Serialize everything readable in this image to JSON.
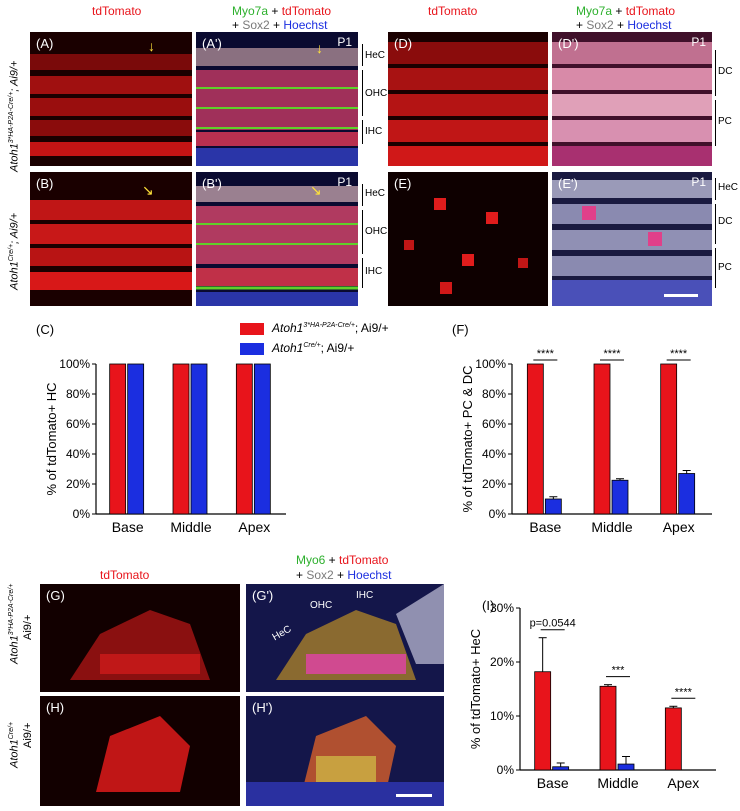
{
  "headers": {
    "tdtomato": "tdTomato",
    "myo7a_line1_a": "Myo7a",
    "plus1": " + ",
    "myo7a_line1_b": "tdTomato",
    "line2_plus_a": "+ ",
    "sox2": "Sox2",
    "line2_plus_b": " + ",
    "hoechst": "Hoechst",
    "myo6": "Myo6"
  },
  "panels": {
    "A": "(A)",
    "A2": "(A')",
    "B": "(B)",
    "B2": "(B')",
    "D": "(D)",
    "D2": "(D')",
    "E": "(E)",
    "E2": "(E')",
    "G": "(G)",
    "G2": "(G')",
    "H": "(H)",
    "H2": "(H')",
    "C": "(C)",
    "F": "(F)",
    "I": "(I)",
    "p1": "P1"
  },
  "row_labels": {
    "top1": "Atoh1",
    "top1_sup": "3*HA-P2A-Cre/+",
    "top1_rest": "; Ai9/+",
    "top2": "Atoh1",
    "top2_sup": "Cre/+",
    "top2_rest": "; Ai9/+",
    "g_label": "Atoh1",
    "g_sup": "3*HA-P2A-Cre/+",
    "g_rest": "Ai9/+",
    "h_label": "Atoh1",
    "h_sup": "Cre/+",
    "h_rest": "Ai9/+"
  },
  "brackets": {
    "hec": "HeC",
    "ohc": "OHC",
    "ihc": "IHC",
    "dc": "DC",
    "pc": "PC"
  },
  "g_annotations": {
    "hec": "HeC",
    "ohc": "OHC",
    "ihc": "IHC"
  },
  "legend": {
    "s1_name": "Atoh1",
    "s1_sup": "3*HA-P2A-Cre/+",
    "s1_rest": "; Ai9/+",
    "s2_name": "Atoh1",
    "s2_sup": "Cre/+",
    "s2_rest": "; Ai9/+"
  },
  "colors": {
    "red": "#e8141b",
    "blue": "#1b2ee0"
  },
  "chart_data": [
    {
      "id": "C",
      "type": "bar",
      "categories": [
        "Base",
        "Middle",
        "Apex"
      ],
      "ylabel": "% of tdTomato+ HC",
      "yticks": [
        "0%",
        "20%",
        "40%",
        "60%",
        "80%",
        "100%"
      ],
      "ylim": [
        0,
        100
      ],
      "series": [
        {
          "name": "Atoh1 3*HA-P2A-Cre/+; Ai9/+",
          "values": [
            100,
            100,
            100
          ]
        },
        {
          "name": "Atoh1 Cre/+; Ai9/+",
          "values": [
            100,
            100,
            100
          ]
        }
      ]
    },
    {
      "id": "F",
      "type": "bar",
      "categories": [
        "Base",
        "Middle",
        "Apex"
      ],
      "ylabel": "% of tdTomato+ PC & DC",
      "yticks": [
        "0%",
        "20%",
        "40%",
        "60%",
        "80%",
        "100%"
      ],
      "ylim": [
        0,
        100
      ],
      "series": [
        {
          "name": "Atoh1 3*HA-P2A-Cre/+; Ai9/+",
          "values": [
            100,
            100,
            100
          ]
        },
        {
          "name": "Atoh1 Cre/+; Ai9/+",
          "values": [
            10,
            22.5,
            27
          ],
          "errors": [
            1.5,
            1,
            2
          ]
        }
      ],
      "significance": [
        "****",
        "****",
        "****"
      ]
    },
    {
      "id": "I",
      "type": "bar",
      "categories": [
        "Base",
        "Middle",
        "Apex"
      ],
      "ylabel": "% of tdTomato+ HeC",
      "yticks": [
        "0%",
        "10%",
        "20%",
        "30%"
      ],
      "ylim": [
        0,
        30
      ],
      "series": [
        {
          "name": "Atoh1 3*HA-P2A-Cre/+; Ai9/+",
          "values": [
            18.2,
            15.5,
            11.5
          ],
          "errors": [
            6.3,
            0.3,
            0.3
          ]
        },
        {
          "name": "Atoh1 Cre/+; Ai9/+",
          "values": [
            0.6,
            1.1,
            0
          ],
          "errors": [
            0.7,
            1.4,
            0
          ]
        }
      ],
      "significance": [
        "p=0.0544",
        "***",
        "****"
      ]
    }
  ]
}
